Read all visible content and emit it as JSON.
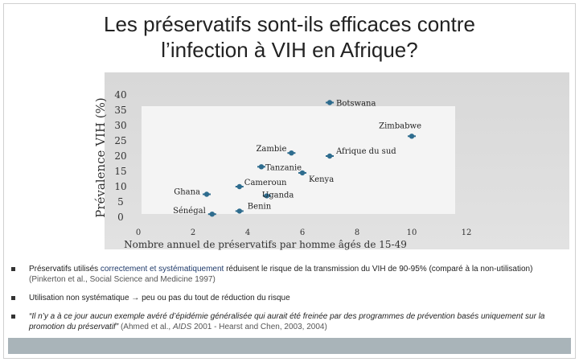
{
  "title_line1": "Les préservatifs sont-ils efficaces contre",
  "title_line2": "l’infection à VIH en Afrique?",
  "chart_data": {
    "type": "scatter",
    "title": "Les préservatifs sont-ils efficaces contre l’infection à VIH en Afrique?",
    "xlabel": "Nombre annuel de préservatifs par homme âgés de 15-49",
    "ylabel": "Prévalence VIH (%)",
    "xlim": [
      0,
      12
    ],
    "ylim": [
      0,
      40
    ],
    "xticks": [
      0,
      2,
      4,
      6,
      8,
      10,
      12
    ],
    "yticks": [
      0,
      5,
      10,
      15,
      20,
      25,
      30,
      35,
      40
    ],
    "points": [
      {
        "label": "Botswana",
        "x": 7.0,
        "y": 37.5
      },
      {
        "label": "Zimbabwe",
        "x": 10.0,
        "y": 26.5
      },
      {
        "label": "Zambie",
        "x": 5.6,
        "y": 21.0
      },
      {
        "label": "Afrique du sud",
        "x": 7.0,
        "y": 20.0
      },
      {
        "label": "Tanzanie",
        "x": 4.5,
        "y": 16.5
      },
      {
        "label": "Kenya",
        "x": 6.0,
        "y": 14.5
      },
      {
        "label": "Cameroun",
        "x": 3.7,
        "y": 10.0
      },
      {
        "label": "Uganda",
        "x": 4.7,
        "y": 7.0
      },
      {
        "label": "Ghana",
        "x": 2.5,
        "y": 7.5
      },
      {
        "label": "Sénégal",
        "x": 2.7,
        "y": 1.0
      },
      {
        "label": "Benin",
        "x": 3.7,
        "y": 2.0
      }
    ]
  },
  "bullets": {
    "b1": {
      "pre": "Préservatifs utilisés ",
      "hl": "correctement et systématiquement",
      "post": " réduisent le risque de la transmission du VIH de 90-95% (comparé à la non-utilisation)",
      "cite": " (Pinkerton et al., Social Science and Medicine 1997)"
    },
    "b2": {
      "text": "Utilisation non systématique → peu ou pas du tout de réduction du risque"
    },
    "b3": {
      "quote": "“Il n’y a à ce jour aucun exemple avéré d’épidémie généralisée qui aurait été freinée par des programmes de prévention basés uniquement sur la promotion du préservatif”",
      "cite_pre": " (Ahmed et al., ",
      "cite_journal": "AIDS",
      "cite_post": " 2001 - Hearst and Chen, 2003, 2004)"
    }
  },
  "colors": {
    "marker": "#2e6c8e",
    "plot_bg": "#dcdcdc",
    "footer": "#a9b4b9",
    "highlight": "#1f3a6a"
  }
}
